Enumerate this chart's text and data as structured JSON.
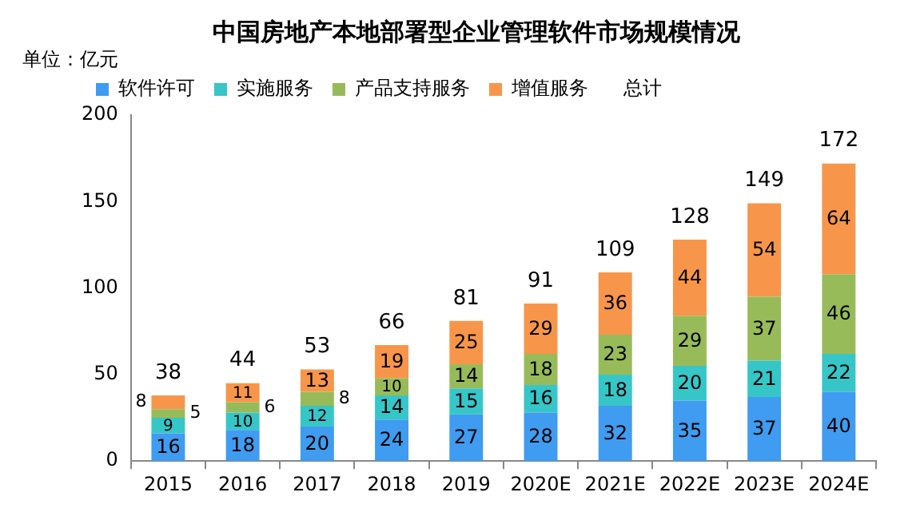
{
  "chart_data": {
    "type": "bar",
    "title": "中国房地产本地部署型企业管理软件市场规模情况",
    "ylabel": "单位：亿元",
    "categories": [
      "2015",
      "2016",
      "2017",
      "2018",
      "2019",
      "2020E",
      "2021E",
      "2022E",
      "2023E",
      "2024E"
    ],
    "stacked": true,
    "series": [
      {
        "name": "软件许可",
        "color": "#3f9cf0",
        "values": [
          16,
          18,
          20,
          24,
          27,
          28,
          32,
          35,
          37,
          40
        ]
      },
      {
        "name": "实施服务",
        "color": "#36c6c8",
        "values": [
          9,
          10,
          12,
          14,
          15,
          16,
          18,
          20,
          21,
          22
        ]
      },
      {
        "name": "产品支持服务",
        "color": "#98bb59",
        "values": [
          5,
          6,
          8,
          10,
          14,
          18,
          23,
          29,
          37,
          46
        ]
      },
      {
        "name": "增值服务",
        "color": "#f7964a",
        "values": [
          8,
          11,
          13,
          19,
          25,
          29,
          36,
          44,
          54,
          64
        ]
      }
    ],
    "totals": [
      "38",
      "44",
      "53",
      "66",
      "81",
      "91",
      "109",
      "128",
      "149",
      "172"
    ],
    "annotations": [
      "总计"
    ],
    "data_labels": true,
    "legend": "top",
    "grid": false,
    "ylim": [
      0,
      200
    ],
    "yticks": [
      0,
      50,
      100,
      150,
      200
    ]
  }
}
